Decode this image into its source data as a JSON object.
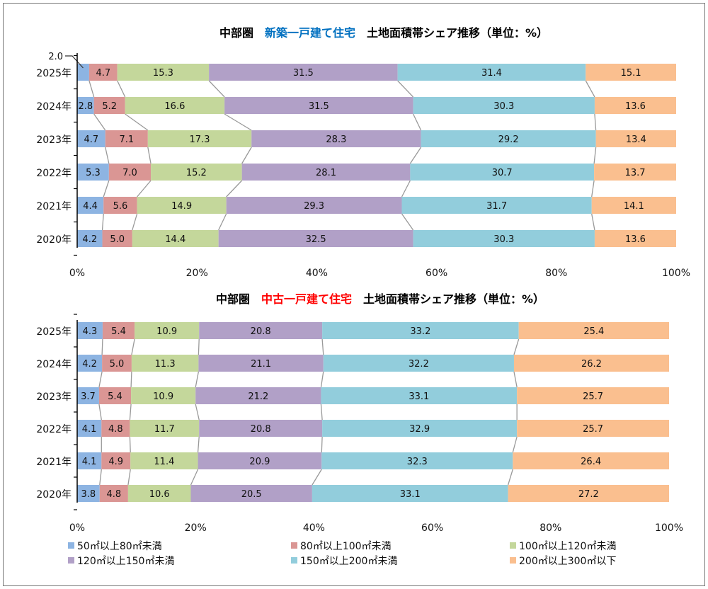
{
  "colors": {
    "50-80": "#8db4e2",
    "80-100": "#da9694",
    "100-120": "#c4d79b",
    "120-150": "#b1a0c7",
    "150-200": "#92cddc",
    "200-300": "#fabf8f"
  },
  "chart_data": [
    {
      "type": "bar",
      "orientation": "horizontal-stacked-100",
      "title_parts": [
        {
          "text": "中部圏　",
          "color": "#000000"
        },
        {
          "text": "新築一戸建て住宅",
          "color": "#0070c0"
        },
        {
          "text": "　土地面積帯シェア推移（単位：%）",
          "color": "#000000"
        }
      ],
      "categories": [
        "2025年",
        "2024年",
        "2023年",
        "2022年",
        "2021年",
        "2020年"
      ],
      "xlim": [
        0,
        100
      ],
      "xticks": [
        "0%",
        "20%",
        "40%",
        "60%",
        "80%",
        "100%"
      ],
      "series": [
        {
          "name": "50㎡以上80㎡未満",
          "values": [
            2.0,
            2.8,
            4.7,
            5.3,
            4.4,
            4.2
          ]
        },
        {
          "name": "80㎡以上100㎡未満",
          "values": [
            4.7,
            5.2,
            7.1,
            7.0,
            5.6,
            5.0
          ]
        },
        {
          "name": "100㎡以上120㎡未満",
          "values": [
            15.3,
            16.6,
            17.3,
            15.2,
            14.9,
            14.4
          ]
        },
        {
          "name": "120㎡以上150㎡未満",
          "values": [
            31.5,
            31.5,
            28.3,
            28.1,
            29.3,
            32.5
          ]
        },
        {
          "name": "150㎡以上200㎡未満",
          "values": [
            31.4,
            30.3,
            29.2,
            30.7,
            31.7,
            30.3
          ]
        },
        {
          "name": "200㎡以上300㎡以下",
          "values": [
            15.1,
            13.6,
            13.4,
            13.7,
            14.1,
            13.6
          ]
        }
      ]
    },
    {
      "type": "bar",
      "orientation": "horizontal-stacked-100",
      "title_parts": [
        {
          "text": "中部圏　",
          "color": "#000000"
        },
        {
          "text": "中古一戸建て住宅",
          "color": "#ff0000"
        },
        {
          "text": "　土地面積帯シェア推移（単位：%）",
          "color": "#000000"
        }
      ],
      "categories": [
        "2025年",
        "2024年",
        "2023年",
        "2022年",
        "2021年",
        "2020年"
      ],
      "xlim": [
        0,
        100
      ],
      "xticks": [
        "0%",
        "20%",
        "40%",
        "60%",
        "80%",
        "100%"
      ],
      "series": [
        {
          "name": "50㎡以上80㎡未満",
          "values": [
            4.3,
            4.2,
            3.7,
            4.1,
            4.1,
            3.8
          ]
        },
        {
          "name": "80㎡以上100㎡未満",
          "values": [
            5.4,
            5.0,
            5.4,
            4.8,
            4.9,
            4.8
          ]
        },
        {
          "name": "100㎡以上120㎡未満",
          "values": [
            10.9,
            11.3,
            10.9,
            11.7,
            11.4,
            10.6
          ]
        },
        {
          "name": "120㎡以上150㎡未満",
          "values": [
            20.8,
            21.1,
            21.2,
            20.8,
            20.9,
            20.5
          ]
        },
        {
          "name": "150㎡以上200㎡未満",
          "values": [
            33.2,
            32.2,
            33.1,
            32.9,
            32.3,
            33.1
          ]
        },
        {
          "name": "200㎡以上300㎡以下",
          "values": [
            25.4,
            26.2,
            25.7,
            25.7,
            26.4,
            27.2
          ]
        }
      ]
    }
  ],
  "legend": [
    "50㎡以上80㎡未満",
    "80㎡以上100㎡未満",
    "100㎡以上120㎡未満",
    "120㎡以上150㎡未満",
    "150㎡以上200㎡未満",
    "200㎡以上300㎡以下"
  ]
}
